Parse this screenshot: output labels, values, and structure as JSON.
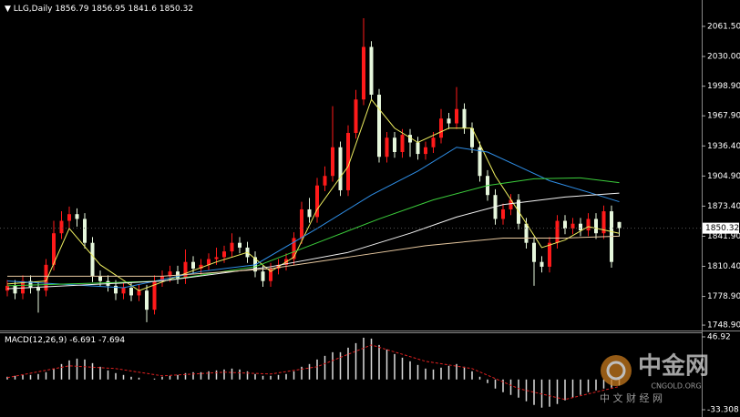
{
  "chart_data": {
    "type": "candlestick",
    "symbol": "LLG,Daily",
    "up_color": "#ff1a1a",
    "down_color": "#e6f7dc",
    "open": [
      1785,
      1790,
      1782,
      1795,
      1788,
      1785,
      1812,
      1845,
      1858,
      1865,
      1860,
      1835,
      1800,
      1795,
      1790,
      1782,
      1788,
      1780,
      1785,
      1765,
      1795,
      1800,
      1805,
      1798,
      1815,
      1808,
      1812,
      1818,
      1820,
      1826,
      1835,
      1830,
      1820,
      1805,
      1795,
      1808,
      1812,
      1818,
      1840,
      1870,
      1862,
      1895,
      1905,
      1935,
      1890,
      1950,
      1985,
      2040,
      1990,
      1925,
      1945,
      1930,
      1948,
      1940,
      1928,
      1935,
      1945,
      1965,
      1960,
      1975,
      1955,
      1935,
      1905,
      1885,
      1860,
      1870,
      1880,
      1855,
      1835,
      1815,
      1810,
      1835,
      1858,
      1850,
      1855,
      1848,
      1860,
      1845,
      1868,
      1856.79
    ],
    "high": [
      1796,
      1796,
      1801,
      1801,
      1794,
      1818,
      1858,
      1868,
      1873,
      1871,
      1866,
      1841,
      1806,
      1801,
      1796,
      1794,
      1794,
      1791,
      1791,
      1801,
      1806,
      1811,
      1811,
      1828,
      1821,
      1818,
      1824,
      1830,
      1832,
      1845,
      1841,
      1836,
      1826,
      1811,
      1814,
      1818,
      1824,
      1846,
      1878,
      1882,
      1903,
      1915,
      1978,
      1941,
      1958,
      1995,
      2070,
      2046,
      1996,
      1951,
      1951,
      1954,
      1954,
      1946,
      1941,
      1951,
      1975,
      1971,
      1998,
      1981,
      1961,
      1941,
      1911,
      1891,
      1876,
      1886,
      1886,
      1861,
      1841,
      1821,
      1841,
      1864,
      1864,
      1861,
      1861,
      1866,
      1866,
      1874,
      1874,
      1856.95
    ],
    "low": [
      1779,
      1776,
      1776,
      1782,
      1762,
      1779,
      1806,
      1839,
      1850,
      1852,
      1829,
      1794,
      1789,
      1784,
      1775,
      1776,
      1774,
      1774,
      1752,
      1760,
      1789,
      1794,
      1792,
      1792,
      1802,
      1802,
      1806,
      1812,
      1814,
      1820,
      1824,
      1814,
      1799,
      1789,
      1789,
      1802,
      1806,
      1812,
      1834,
      1856,
      1856,
      1889,
      1899,
      1884,
      1884,
      1944,
      1979,
      1984,
      1919,
      1919,
      1924,
      1924,
      1925,
      1922,
      1922,
      1929,
      1939,
      1954,
      1954,
      1949,
      1929,
      1899,
      1879,
      1854,
      1854,
      1864,
      1849,
      1829,
      1790,
      1804,
      1804,
      1829,
      1844,
      1844,
      1842,
      1842,
      1839,
      1839,
      1809,
      1841.6
    ],
    "close": [
      1790,
      1782,
      1795,
      1788,
      1785,
      1812,
      1845,
      1858,
      1865,
      1860,
      1835,
      1800,
      1795,
      1790,
      1782,
      1788,
      1780,
      1785,
      1765,
      1795,
      1800,
      1805,
      1798,
      1815,
      1808,
      1812,
      1818,
      1820,
      1826,
      1835,
      1830,
      1820,
      1805,
      1795,
      1808,
      1812,
      1818,
      1840,
      1870,
      1862,
      1895,
      1905,
      1935,
      1890,
      1950,
      1985,
      2040,
      1990,
      1925,
      1945,
      1930,
      1948,
      1940,
      1928,
      1935,
      1945,
      1965,
      1960,
      1975,
      1955,
      1935,
      1905,
      1885,
      1860,
      1870,
      1880,
      1855,
      1835,
      1815,
      1810,
      1835,
      1858,
      1850,
      1855,
      1848,
      1860,
      1845,
      1868,
      1815,
      1850.32
    ],
    "ylim": [
      1744.2,
      2089.1
    ],
    "yticks": [
      {
        "value": 2061.5,
        "label": "2061.50"
      },
      {
        "value": 2030.0,
        "label": "2030.00"
      },
      {
        "value": 1998.9,
        "label": "1998.90"
      },
      {
        "value": 1967.9,
        "label": "1967.90"
      },
      {
        "value": 1936.4,
        "label": "1936.40"
      },
      {
        "value": 1904.9,
        "label": "1904.90"
      },
      {
        "value": 1873.4,
        "label": "1873.40"
      },
      {
        "value": 1841.9,
        "label": "1841.90"
      },
      {
        "value": 1810.4,
        "label": "1810.40"
      },
      {
        "value": 1778.9,
        "label": "1778.90"
      },
      {
        "value": 1748.9,
        "label": "1748.90"
      }
    ],
    "moving_averages": [
      {
        "color": "#f0f060",
        "x": [
          0,
          5,
          8,
          12,
          17,
          22,
          27,
          31,
          34,
          37,
          40,
          44,
          47,
          50,
          53,
          57,
          60,
          63,
          66,
          69,
          72,
          75,
          79
        ],
        "values": [
          1792,
          1795,
          1850,
          1812,
          1785,
          1800,
          1815,
          1825,
          1805,
          1820,
          1870,
          1915,
          1985,
          1955,
          1940,
          1955,
          1955,
          1905,
          1868,
          1830,
          1838,
          1852,
          1845
        ]
      },
      {
        "color": "#2f8fe8",
        "x": [
          0,
          15,
          25,
          32,
          40,
          47,
          53,
          58,
          62,
          66,
          70,
          75,
          79
        ],
        "values": [
          1795,
          1788,
          1805,
          1812,
          1850,
          1885,
          1910,
          1935,
          1930,
          1915,
          1900,
          1888,
          1878
        ]
      },
      {
        "color": "#3ccf3c",
        "x": [
          0,
          20,
          32,
          40,
          48,
          55,
          62,
          68,
          74,
          79
        ],
        "values": [
          1790,
          1795,
          1810,
          1835,
          1860,
          1880,
          1895,
          1902,
          1903,
          1898
        ]
      },
      {
        "color": "#f2f2f2",
        "x": [
          0,
          20,
          34,
          44,
          52,
          58,
          64,
          72,
          79
        ],
        "values": [
          1787,
          1795,
          1810,
          1825,
          1845,
          1862,
          1875,
          1883,
          1887
        ]
      },
      {
        "color": "#e8c9a0",
        "x": [
          0,
          20,
          34,
          44,
          54,
          64,
          72,
          79
        ],
        "values": [
          1800,
          1800,
          1808,
          1820,
          1832,
          1840,
          1840,
          1842
        ]
      }
    ],
    "macd": {
      "label": "MACD(12,26,9)",
      "color": "#dddddd",
      "histogram": [
        3,
        4,
        5,
        5,
        6,
        8,
        12,
        17,
        21,
        23,
        22,
        18,
        14,
        10,
        7,
        5,
        3,
        2,
        0,
        1,
        3,
        4,
        5,
        7,
        8,
        8,
        9,
        10,
        11,
        12,
        11,
        9,
        6,
        4,
        4,
        5,
        6,
        9,
        14,
        17,
        22,
        26,
        30,
        30,
        35,
        40,
        46,
        45,
        38,
        33,
        28,
        24,
        20,
        16,
        12,
        11,
        13,
        15,
        17,
        14,
        9,
        3,
        -4,
        -10,
        -14,
        -17,
        -20,
        -24,
        -28,
        -31,
        -30,
        -27,
        -23,
        -20,
        -17,
        -14,
        -12,
        -10,
        -9,
        -6.691
      ],
      "signal": {
        "color": "#e02020",
        "x": [
          0,
          8,
          14,
          20,
          28,
          34,
          40,
          47,
          54,
          60,
          66,
          72,
          79
        ],
        "values": [
          2,
          15,
          12,
          4,
          8,
          6,
          14,
          38,
          20,
          12,
          -10,
          -22,
          -7.694
        ]
      },
      "ylim": [
        -38.3,
        49.9
      ],
      "yticks": [
        46.92,
        -33.308
      ]
    },
    "watermark": {
      "title": "中金网",
      "site": "CNGOLD.ORG",
      "subtitle": "中 文 财 经 网"
    }
  }
}
